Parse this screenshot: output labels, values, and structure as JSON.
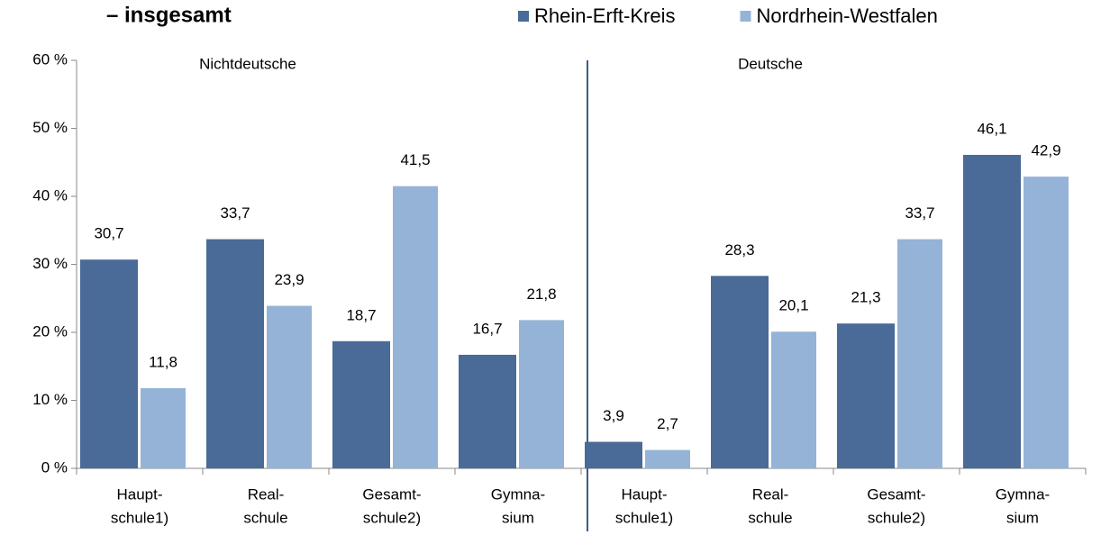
{
  "chart_data": {
    "type": "bar",
    "title": "– insgesamt",
    "group_labels": [
      "Nichtdeutsche",
      "Deutsche"
    ],
    "categories": [
      [
        "Haupt-",
        "schule1)"
      ],
      [
        "Real-",
        "schule"
      ],
      [
        "Gesamt-",
        "schule2)"
      ],
      [
        "Gymna-",
        "sium"
      ],
      [
        "Haupt-",
        "schule1)"
      ],
      [
        "Real-",
        "schule"
      ],
      [
        "Gesamt-",
        "schule2)"
      ],
      [
        "Gymna-",
        "sium"
      ]
    ],
    "series": [
      {
        "name": "Rhein-Erft-Kreis",
        "color": "#4a6a97",
        "values": [
          30.7,
          33.7,
          18.7,
          16.7,
          3.9,
          28.3,
          21.3,
          46.1
        ],
        "value_labels": [
          "30,7",
          "33,7",
          "18,7",
          "16,7",
          "3,9",
          "28,3",
          "21,3",
          "46,1"
        ]
      },
      {
        "name": "Nordrhein-Westfalen",
        "color": "#95b3d7",
        "values": [
          11.8,
          23.9,
          41.5,
          21.8,
          2.7,
          20.1,
          33.7,
          42.9
        ],
        "value_labels": [
          "11,8",
          "23,9",
          "41,5",
          "21,8",
          "2,7",
          "20,1",
          "33,7",
          "42,9"
        ]
      }
    ],
    "ylim": [
      0,
      60
    ],
    "yticks": [
      {
        "value": 0,
        "label": "0 %"
      },
      {
        "value": 10,
        "label": "10 %"
      },
      {
        "value": 20,
        "label": "20 %"
      },
      {
        "value": 30,
        "label": "30 %"
      },
      {
        "value": 40,
        "label": "40 %"
      },
      {
        "value": 50,
        "label": "50 %"
      },
      {
        "value": 60,
        "label": "60 %"
      }
    ]
  }
}
